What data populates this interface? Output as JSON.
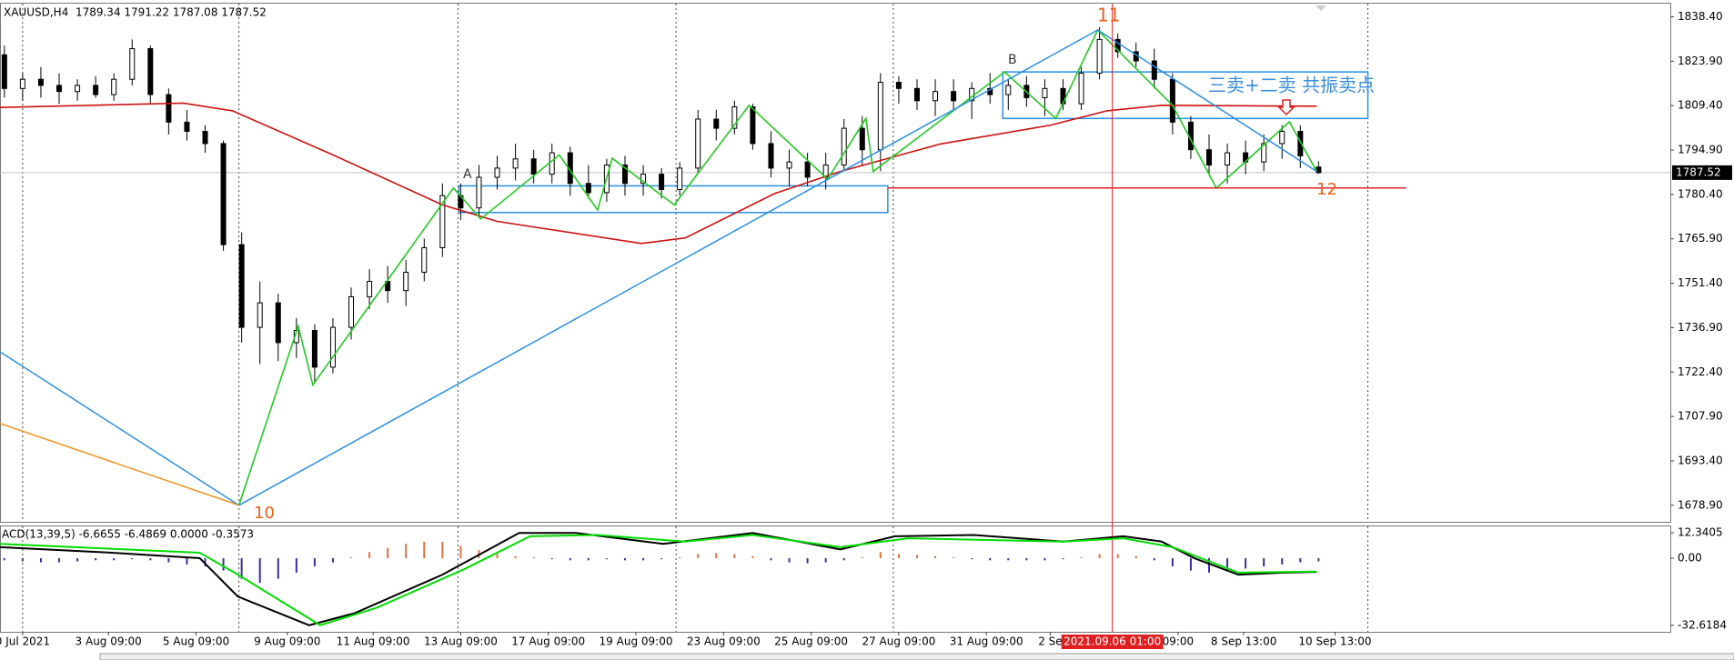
{
  "chart_data": [
    {
      "type": "candlestick",
      "title": "XAUUSD,H4  1789.34 1791.22 1787.08 1787.52",
      "xlim": [
        -0.24,
        91.27
      ],
      "ylim": [
        1673.5,
        1842.7
      ],
      "yticks": [
        {
          "value": 1838.4,
          "label": "1838.40"
        },
        {
          "value": 1823.9,
          "label": "1823.90"
        },
        {
          "value": 1809.4,
          "label": "1809.40"
        },
        {
          "value": 1794.9,
          "label": "1794.90"
        },
        {
          "value": 1780.4,
          "label": "1780.40"
        },
        {
          "value": 1765.9,
          "label": "1765.90"
        },
        {
          "value": 1751.4,
          "label": "1751.40"
        },
        {
          "value": 1736.9,
          "label": "1736.90"
        },
        {
          "value": 1722.4,
          "label": "1722.40"
        },
        {
          "value": 1707.9,
          "label": "1707.90"
        },
        {
          "value": 1693.4,
          "label": "1693.40"
        },
        {
          "value": 1678.9,
          "label": "1678.90"
        }
      ],
      "xticks": [
        {
          "value": 1.0,
          "label": "0 Jul 2021"
        },
        {
          "value": 5.7,
          "label": "3 Aug 09:00"
        },
        {
          "value": 10.5,
          "label": "5 Aug 09:00"
        },
        {
          "value": 15.5,
          "label": "9 Aug 09:00"
        },
        {
          "value": 20.2,
          "label": "11 Aug 09:00"
        },
        {
          "value": 25.0,
          "label": "13 Aug 09:00"
        },
        {
          "value": 29.8,
          "label": "17 Aug 09:00"
        },
        {
          "value": 34.6,
          "label": "19 Aug 09:00"
        },
        {
          "value": 39.4,
          "label": "23 Aug 09:00"
        },
        {
          "value": 44.2,
          "label": "25 Aug 09:00"
        },
        {
          "value": 49.0,
          "label": "27 Aug 09:00"
        },
        {
          "value": 53.8,
          "label": "31 Aug 09:00"
        },
        {
          "value": 57.3,
          "label": "2 Se"
        },
        {
          "value": 64.3,
          "label": "09:00"
        },
        {
          "value": 67.9,
          "label": "8 Sep 13:00"
        },
        {
          "value": 72.9,
          "label": "10 Sep 13:00"
        }
      ],
      "grid_x": [
        1.0,
        12.85,
        24.85,
        36.8,
        48.7,
        74.7
      ],
      "cursor": {
        "value": 60.7,
        "label": "2021.09.06 01:00",
        "color": "#e02020"
      },
      "current_price": 1787.52,
      "candles": {
        "open": [
          1826,
          1815,
          1818,
          1816,
          1814,
          1816,
          1813,
          1818,
          1828,
          1813,
          1804,
          1801,
          1797,
          1764,
          1737,
          1745,
          1732,
          1736,
          1724,
          1737,
          1747,
          1752,
          1749,
          1755,
          1763,
          1780,
          1776,
          1786,
          1789,
          1792,
          1787,
          1794,
          1784,
          1781,
          1790,
          1784,
          1787,
          1782,
          1789,
          1805,
          1802,
          1809,
          1797,
          1789,
          1791,
          1786,
          1790,
          1802,
          1795,
          1817,
          1815,
          1811,
          1814,
          1811,
          1815,
          1813,
          1816,
          1812,
          1815,
          1810,
          1820,
          1831,
          1827,
          1824,
          1818,
          1804,
          1795,
          1790,
          1794,
          1791,
          1797,
          1801,
          1789.34
        ],
        "high": [
          1829,
          1820,
          1822,
          1820,
          1818,
          1819,
          1820,
          1831,
          1829,
          1815,
          1808,
          1803,
          1798,
          1768,
          1752,
          1748,
          1740,
          1738,
          1740,
          1750,
          1756,
          1757,
          1759,
          1766,
          1784,
          1784,
          1790,
          1793,
          1797,
          1795,
          1797,
          1796,
          1790,
          1792,
          1793,
          1790,
          1789,
          1791,
          1808,
          1808,
          1811,
          1810,
          1801,
          1795,
          1794,
          1794,
          1805,
          1806,
          1820,
          1819,
          1818,
          1818,
          1818,
          1817,
          1820,
          1818,
          1819,
          1818,
          1818,
          1822,
          1835,
          1833,
          1830,
          1828,
          1820,
          1806,
          1800,
          1797,
          1798,
          1800,
          1803,
          1803,
          1791.22
        ],
        "low": [
          1812,
          1811,
          1812,
          1810,
          1811,
          1812,
          1811,
          1816,
          1810,
          1800,
          1798,
          1794,
          1762,
          1732,
          1725,
          1726,
          1727,
          1719,
          1722,
          1733,
          1743,
          1745,
          1744,
          1752,
          1760,
          1772,
          1773,
          1782,
          1785,
          1784,
          1784,
          1780,
          1779,
          1778,
          1780,
          1780,
          1779,
          1780,
          1787,
          1798,
          1800,
          1795,
          1786,
          1783,
          1783,
          1782,
          1788,
          1790,
          1788,
          1810,
          1808,
          1806,
          1808,
          1805,
          1810,
          1808,
          1809,
          1806,
          1808,
          1808,
          1818,
          1825,
          1822,
          1815,
          1800,
          1792,
          1787,
          1784,
          1787,
          1788,
          1792,
          1789,
          1787.08
        ],
        "close": [
          1815,
          1818,
          1816,
          1814,
          1816,
          1813,
          1818,
          1828,
          1813,
          1804,
          1801,
          1797,
          1764,
          1737,
          1745,
          1732,
          1736,
          1724,
          1737,
          1747,
          1752,
          1749,
          1755,
          1763,
          1780,
          1776,
          1786,
          1789,
          1792,
          1787,
          1794,
          1784,
          1781,
          1790,
          1784,
          1787,
          1782,
          1789,
          1805,
          1802,
          1809,
          1797,
          1789,
          1791,
          1786,
          1790,
          1802,
          1795,
          1817,
          1815,
          1811,
          1814,
          1811,
          1815,
          1813,
          1816,
          1812,
          1815,
          1810,
          1820,
          1831,
          1827,
          1824,
          1818,
          1804,
          1795,
          1790,
          1794,
          1791,
          1797,
          1801,
          1793,
          1787.52
        ]
      },
      "lines": [
        {
          "color": "#cc1111",
          "x": [
            -0.24,
            9.8,
            12.5,
            18.0,
            24.0,
            27.0,
            34.9,
            37.3,
            42.2,
            45.8,
            51.3,
            57.3,
            60.4,
            63.4,
            71.9
          ],
          "values": [
            1808.8,
            1810.2,
            1807.7,
            1793.3,
            1777.0,
            1771.6,
            1764.4,
            1766.2,
            1780.7,
            1787.9,
            1796.9,
            1803.0,
            1807.7,
            1809.5,
            1809.2
          ]
        },
        {
          "color": "#22c922",
          "x": [
            12.85,
            16.1,
            16.9,
            24.6,
            26.1,
            30.4,
            32.5,
            33.3,
            36.7,
            40.8,
            45.1,
            47.2,
            47.6,
            54.8,
            57.6,
            59.9,
            64.0,
            66.4,
            70.4,
            71.9
          ],
          "values": [
            1678.9,
            1737.4,
            1718.2,
            1782.5,
            1772.4,
            1793.3,
            1775.3,
            1792.2,
            1777.0,
            1809.5,
            1785.4,
            1805.2,
            1787.9,
            1820.4,
            1805.2,
            1834.1,
            1809.5,
            1782.5,
            1804.1,
            1787.9
          ]
        },
        {
          "color": "#2a8fe0",
          "x": [
            -0.24,
            12.85
          ],
          "values": [
            1729.0,
            1678.9
          ]
        },
        {
          "color": "#2a8fe0",
          "x": [
            12.85,
            59.9
          ],
          "values": [
            1678.9,
            1834.1
          ]
        },
        {
          "color": "#2a8fe0",
          "x": [
            59.9,
            71.9
          ],
          "values": [
            1834.1,
            1787.9
          ]
        },
        {
          "color": "#f0901e",
          "x": [
            -0.24,
            12.85
          ],
          "values": [
            1705.6,
            1678.9
          ]
        },
        {
          "color": "#e02020",
          "x": [
            48.4,
            76.8
          ],
          "values": [
            1782.5,
            1782.5
          ]
        }
      ],
      "rects": [
        {
          "color": "#2a8fe0",
          "x": [
            24.9,
            48.4
          ],
          "values": [
            1783.2,
            1774.5
          ]
        },
        {
          "color": "#2a8fe0",
          "x": [
            54.7,
            74.7
          ],
          "values": [
            1820.4,
            1805.2
          ]
        }
      ],
      "annotations": [
        "A",
        "B",
        "10",
        "11",
        "12",
        "三卖+二卖 共振卖点"
      ]
    },
    {
      "type": "macd",
      "title": "ACD(13,39,5) -6.6655 -6.4869 0.0000 -0.3573",
      "ylim": [
        -35.8,
        15.5
      ],
      "yticks": [
        12.3405,
        {
          "value": 0,
          "label": "0.00"
        },
        -32.6184
      ],
      "pos_color": "#e07040",
      "neg_color": "#3030a0",
      "histogram": [
        -1,
        -1.5,
        -2,
        -2,
        -1.5,
        -1,
        -1,
        -0.5,
        -1,
        -2,
        -3,
        -4,
        -6,
        -10,
        -12,
        -10,
        -7,
        -4,
        -2,
        0.5,
        3,
        5,
        7,
        8,
        8,
        6,
        4,
        2,
        1,
        0.5,
        -0.5,
        -1,
        -1,
        -0.5,
        -1,
        -1,
        -0.5,
        0.5,
        2,
        2.5,
        2,
        1,
        -1,
        -2,
        -2.5,
        -2,
        -1,
        0.5,
        3,
        2,
        1.5,
        1,
        0.5,
        -0.5,
        -1,
        -1,
        -1,
        -1,
        -0.5,
        0.5,
        2,
        2,
        1,
        -1,
        -4,
        -6,
        -7,
        -6,
        -5,
        -4,
        -3,
        -2,
        -1.5
      ],
      "lines": [
        {
          "color": "#000000",
          "x": [
            -0.24,
            5.8,
            10.7,
            12.8,
            16.7,
            19.2,
            24.0,
            28.2,
            31.3,
            36.1,
            41.0,
            45.8,
            48.8,
            53.1,
            58.0,
            61.3,
            63.4,
            65.2,
            67.6,
            70.1,
            71.9
          ],
          "values": [
            5.38,
            2.71,
            0.03,
            -18.7,
            -32.6,
            -26.7,
            -8.0,
            12.3,
            12.3,
            7.0,
            12.3,
            4.3,
            10.7,
            11.3,
            8.1,
            10.7,
            8.1,
            0.0,
            -8.0,
            -7.0,
            -6.67
          ]
        },
        {
          "color": "#00dd00",
          "x": [
            -0.24,
            10.7,
            12.8,
            17.3,
            20.4,
            25.2,
            28.8,
            32.5,
            37.3,
            41.0,
            45.8,
            49.5,
            58.0,
            61.3,
            64.0,
            67.6,
            71.9
          ],
          "values": [
            7.0,
            2.7,
            -8.0,
            -32.6,
            -24.1,
            -5.3,
            10.7,
            11.3,
            8.1,
            11.3,
            5.4,
            9.7,
            8.1,
            9.7,
            5.4,
            -7.0,
            -6.49
          ]
        }
      ]
    }
  ]
}
